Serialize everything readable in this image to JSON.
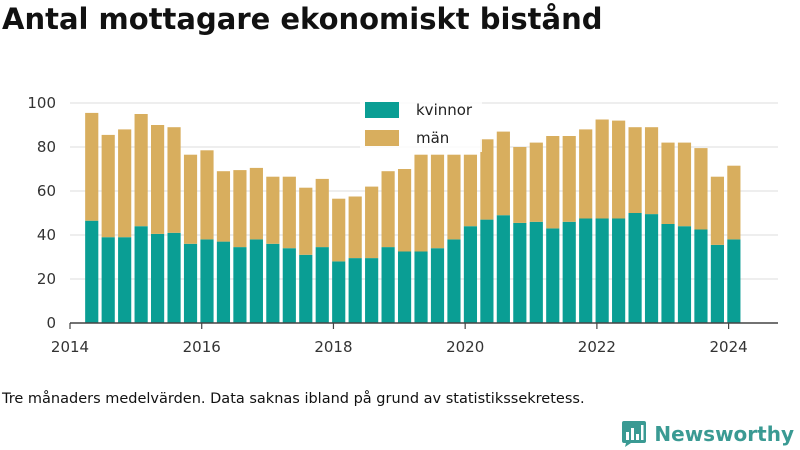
{
  "title": "Antal mottagare ekonomiskt bistånd",
  "note": "Tre månaders medelvärden. Data saknas ibland på grund av statistikssekretess.",
  "brand": {
    "name": "Newsworthy",
    "icon": "bar-chart-speech-bubble-icon",
    "color": "#3a9a93"
  },
  "chart_data": {
    "type": "bar",
    "stacked": true,
    "grid": true,
    "legend_position": "top-center",
    "ylim": [
      0,
      100
    ],
    "yticks": [
      "0",
      "20",
      "40",
      "60",
      "80",
      "100"
    ],
    "xlim": [
      2014.0,
      2024.75
    ],
    "xticks": [
      "2014",
      "2016",
      "2018",
      "2020",
      "2022",
      "2024"
    ],
    "x": [
      2014.33,
      2014.58,
      2014.83,
      2015.08,
      2015.33,
      2015.58,
      2015.83,
      2016.08,
      2016.33,
      2016.58,
      2016.83,
      2017.08,
      2017.33,
      2017.58,
      2017.83,
      2018.08,
      2018.33,
      2018.58,
      2018.83,
      2019.08,
      2019.33,
      2019.58,
      2019.83,
      2020.08,
      2020.33,
      2020.58,
      2020.83,
      2021.08,
      2021.33,
      2021.58,
      2021.83,
      2022.08,
      2022.33,
      2022.58,
      2022.83,
      2023.08,
      2023.33,
      2023.58,
      2023.83,
      2024.08
    ],
    "series": [
      {
        "name": "kvinnor",
        "color": "#0a9e94",
        "values": [
          46.5,
          39,
          39,
          44,
          40.5,
          41,
          36,
          38,
          37,
          34.5,
          38,
          36,
          34,
          31,
          34.5,
          28,
          29.5,
          29.5,
          34.5,
          32.5,
          32.5,
          34,
          38,
          44,
          47,
          49,
          45.5,
          46,
          43,
          46,
          47.5,
          47.5,
          47.5,
          50,
          49.5,
          45,
          44,
          42.5,
          35.5,
          38
        ]
      },
      {
        "name": "män",
        "color": "#d8ae5e",
        "values": [
          49,
          46.5,
          49,
          51,
          49.5,
          48,
          40.5,
          40.5,
          32,
          35,
          32.5,
          30.5,
          32.5,
          30.5,
          31,
          28.5,
          28,
          32.5,
          34.5,
          37.5,
          44,
          42.5,
          38.5,
          32.5,
          36.5,
          38,
          34.5,
          36,
          42,
          39,
          40.5,
          45,
          44.5,
          39,
          39.5,
          37,
          38,
          37,
          31,
          33.5
        ]
      }
    ]
  }
}
